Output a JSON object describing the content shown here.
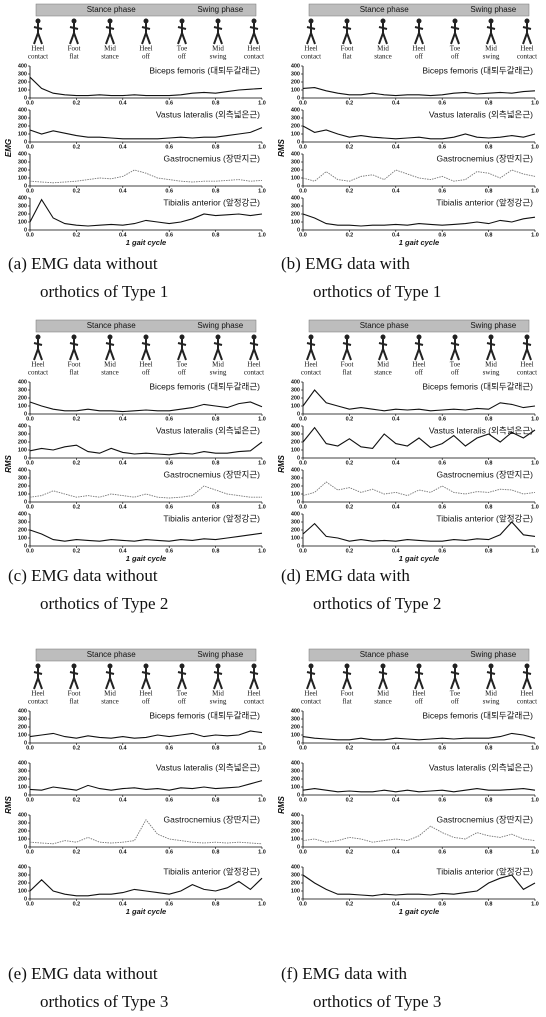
{
  "header": {
    "stance": "Stance phase",
    "swing": "Swing phase"
  },
  "phases": [
    [
      "Heel",
      "contact"
    ],
    [
      "Foot",
      "flat"
    ],
    [
      "Mid",
      "stance"
    ],
    [
      "Heel",
      "off"
    ],
    [
      "Toe",
      "off"
    ],
    [
      "Mid",
      "swing"
    ],
    [
      "Heel",
      "contact"
    ]
  ],
  "muscles": [
    "Biceps femoris (대퇴두갈래근)",
    "Vastus lateralis (외측넓은근)",
    "Gastrocnemius (장딴지근)",
    "Tibialis anterior (앞정강근)"
  ],
  "muscle_colors": [
    "#111111",
    "#111111",
    "#777777",
    "#111111"
  ],
  "xlabel": "1 gait cycle",
  "x": [
    0,
    0.05,
    0.1,
    0.15,
    0.2,
    0.25,
    0.3,
    0.35,
    0.4,
    0.45,
    0.5,
    0.55,
    0.6,
    0.65,
    0.7,
    0.75,
    0.8,
    0.85,
    0.9,
    0.95,
    1
  ],
  "xlim": [
    0,
    1
  ],
  "xticks": [
    {
      "value": 0,
      "label": "0.0"
    },
    {
      "value": 0.2,
      "label": "0.2"
    },
    {
      "value": 0.4,
      "label": "0.4"
    },
    {
      "value": 0.6,
      "label": "0.6"
    },
    {
      "value": 0.8,
      "label": "0.8"
    },
    {
      "value": 1,
      "label": "1.0"
    }
  ],
  "ylim": [
    0,
    400
  ],
  "yticks": [
    0,
    100,
    200,
    300,
    400
  ],
  "panels": [
    {
      "caption": [
        "(a) EMG data without",
        "orthotics of Type 1"
      ],
      "ylabel": "EMG",
      "charts": [
        {
          "type": "line",
          "values": [
            260,
            120,
            60,
            40,
            30,
            30,
            40,
            30,
            30,
            40,
            30,
            30,
            30,
            40,
            60,
            70,
            60,
            80,
            100,
            110,
            120
          ]
        },
        {
          "type": "line",
          "values": [
            150,
            100,
            140,
            110,
            80,
            60,
            60,
            50,
            40,
            40,
            40,
            40,
            50,
            60,
            50,
            60,
            60,
            80,
            100,
            120,
            180
          ]
        },
        {
          "type": "line",
          "values": [
            60,
            50,
            40,
            50,
            60,
            80,
            100,
            90,
            120,
            200,
            160,
            100,
            80,
            60,
            50,
            60,
            60,
            70,
            80,
            60,
            70
          ]
        },
        {
          "type": "line",
          "values": [
            100,
            380,
            150,
            80,
            60,
            50,
            60,
            70,
            60,
            80,
            120,
            100,
            80,
            100,
            140,
            200,
            180,
            190,
            200,
            180,
            200
          ]
        }
      ]
    },
    {
      "caption": [
        "(b) EMG data with",
        "orthotics of Type 1"
      ],
      "ylabel": "RMS",
      "charts": [
        {
          "type": "line",
          "values": [
            120,
            130,
            90,
            60,
            40,
            40,
            60,
            40,
            30,
            40,
            40,
            30,
            40,
            60,
            70,
            50,
            60,
            70,
            60,
            80,
            90
          ]
        },
        {
          "type": "line",
          "values": [
            200,
            120,
            150,
            100,
            60,
            80,
            60,
            50,
            40,
            50,
            60,
            40,
            40,
            60,
            100,
            60,
            50,
            60,
            80,
            60,
            100
          ]
        },
        {
          "type": "line",
          "values": [
            100,
            60,
            180,
            80,
            60,
            120,
            140,
            80,
            200,
            150,
            100,
            80,
            120,
            60,
            80,
            180,
            160,
            100,
            200,
            150,
            120
          ]
        },
        {
          "type": "line",
          "values": [
            200,
            150,
            80,
            60,
            60,
            50,
            60,
            60,
            70,
            60,
            80,
            70,
            60,
            70,
            80,
            100,
            80,
            120,
            100,
            140,
            160
          ]
        }
      ]
    },
    {
      "caption": [
        "(c) EMG data without",
        "orthotics of Type 2"
      ],
      "ylabel": "RMS",
      "charts": [
        {
          "type": "line",
          "values": [
            150,
            100,
            60,
            40,
            40,
            60,
            40,
            40,
            30,
            40,
            50,
            40,
            40,
            60,
            80,
            120,
            100,
            80,
            130,
            150,
            90
          ]
        },
        {
          "type": "line",
          "values": [
            90,
            120,
            100,
            140,
            160,
            80,
            60,
            120,
            70,
            50,
            60,
            50,
            40,
            60,
            50,
            80,
            60,
            60,
            80,
            90,
            200
          ]
        },
        {
          "type": "line",
          "values": [
            60,
            80,
            140,
            100,
            60,
            80,
            60,
            100,
            80,
            60,
            100,
            60,
            50,
            60,
            80,
            200,
            150,
            100,
            80,
            60,
            60
          ]
        },
        {
          "type": "line",
          "values": [
            200,
            150,
            80,
            60,
            80,
            70,
            60,
            80,
            70,
            60,
            80,
            70,
            60,
            80,
            70,
            90,
            80,
            100,
            120,
            140,
            160
          ]
        }
      ]
    },
    {
      "caption": [
        "(d) EMG data with",
        "orthotics of Type 2"
      ],
      "ylabel": "RMS",
      "charts": [
        {
          "type": "line",
          "values": [
            100,
            300,
            140,
            100,
            60,
            80,
            60,
            40,
            60,
            50,
            60,
            40,
            50,
            60,
            50,
            70,
            60,
            140,
            120,
            80,
            100
          ]
        },
        {
          "type": "line",
          "values": [
            200,
            380,
            180,
            150,
            240,
            140,
            120,
            300,
            180,
            150,
            250,
            130,
            180,
            280,
            150,
            250,
            300,
            200,
            320,
            250,
            350
          ]
        },
        {
          "type": "line",
          "values": [
            80,
            120,
            250,
            150,
            180,
            120,
            160,
            100,
            120,
            80,
            150,
            120,
            200,
            120,
            100,
            130,
            120,
            160,
            150,
            100,
            120
          ]
        },
        {
          "type": "line",
          "values": [
            150,
            280,
            120,
            100,
            60,
            80,
            60,
            70,
            60,
            80,
            70,
            60,
            60,
            80,
            70,
            90,
            80,
            140,
            300,
            140,
            120
          ]
        }
      ]
    },
    {
      "caption": [
        "(e) EMG data without",
        "orthotics of Type 3"
      ],
      "ylabel": "RMS",
      "charts": [
        {
          "type": "line",
          "values": [
            80,
            100,
            120,
            80,
            60,
            90,
            70,
            60,
            80,
            60,
            70,
            100,
            80,
            100,
            120,
            80,
            100,
            90,
            100,
            150,
            130
          ]
        },
        {
          "type": "line",
          "values": [
            70,
            60,
            100,
            80,
            60,
            120,
            80,
            60,
            80,
            90,
            70,
            80,
            60,
            90,
            80,
            100,
            80,
            90,
            100,
            140,
            180
          ]
        },
        {
          "type": "line",
          "values": [
            60,
            50,
            40,
            80,
            60,
            120,
            60,
            50,
            60,
            80,
            340,
            160,
            100,
            80,
            60,
            50,
            60,
            50,
            60,
            50,
            40
          ]
        },
        {
          "type": "line",
          "values": [
            100,
            240,
            100,
            60,
            40,
            40,
            60,
            60,
            80,
            120,
            100,
            80,
            60,
            100,
            180,
            120,
            100,
            140,
            220,
            120,
            260
          ]
        }
      ]
    },
    {
      "caption": [
        "(f) EMG data with",
        "orthotics of Type 3"
      ],
      "ylabel": "RMS",
      "charts": [
        {
          "type": "line",
          "values": [
            80,
            60,
            50,
            40,
            40,
            60,
            40,
            40,
            60,
            50,
            40,
            50,
            60,
            50,
            60,
            60,
            60,
            80,
            120,
            100,
            60
          ]
        },
        {
          "type": "line",
          "values": [
            60,
            80,
            60,
            40,
            50,
            40,
            40,
            60,
            40,
            60,
            40,
            50,
            60,
            40,
            60,
            80,
            60,
            60,
            70,
            80,
            60
          ]
        },
        {
          "type": "line",
          "values": [
            80,
            100,
            60,
            80,
            120,
            100,
            60,
            80,
            100,
            80,
            140,
            260,
            180,
            120,
            100,
            180,
            140,
            120,
            160,
            100,
            80
          ]
        },
        {
          "type": "line",
          "values": [
            300,
            200,
            120,
            60,
            60,
            50,
            40,
            60,
            50,
            60,
            60,
            50,
            70,
            60,
            80,
            100,
            200,
            260,
            300,
            120,
            200
          ]
        }
      ]
    }
  ]
}
